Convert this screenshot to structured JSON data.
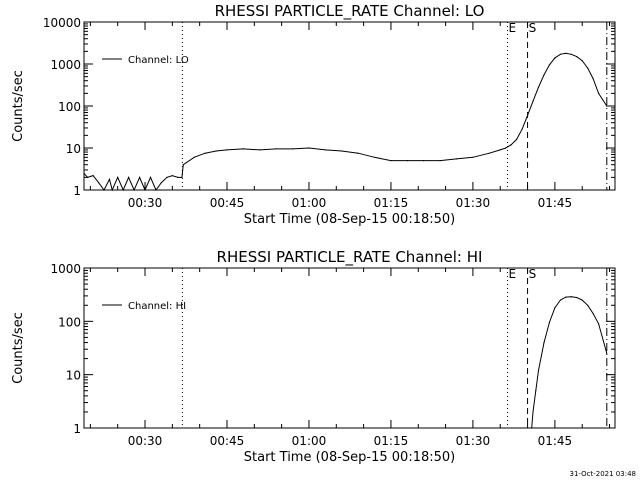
{
  "footer": {
    "timestamp": "31-Oct-2021 03:48"
  },
  "chart_data": [
    {
      "type": "line",
      "title": "RHESSI PARTICLE_RATE Channel: LO",
      "xlabel": "Start Time (08-Sep-15 00:18:50)",
      "ylabel": "Counts/sec",
      "y_scale": "log",
      "ylim": [
        1,
        10000
      ],
      "xlim": [
        "00:18:50",
        "01:56:00"
      ],
      "grid": false,
      "legend": {
        "position": "upper-left",
        "entries": [
          "Channel: LO"
        ]
      },
      "x_ticks": [
        "00:30",
        "00:45",
        "01:00",
        "01:15",
        "01:30",
        "01:45"
      ],
      "y_ticks": [
        "1",
        "10",
        "100",
        "1000",
        "10000"
      ],
      "markers": [
        {
          "label": "",
          "x": "00:36:50",
          "style": "dotted"
        },
        {
          "label": "E",
          "x": "01:36:20",
          "style": "dotted"
        },
        {
          "label": "S",
          "x": "01:40:00",
          "style": "dashed"
        },
        {
          "label": "",
          "x": "01:54:30",
          "style": "dash-dot"
        }
      ],
      "series": [
        {
          "name": "Channel: LO",
          "x": [
            "00:18:50",
            "00:19:30",
            "00:20:30",
            "00:21:30",
            "00:22:30",
            "00:23:30",
            "00:24:00",
            "00:25:00",
            "00:26:00",
            "00:27:00",
            "00:28:00",
            "00:29:00",
            "00:30:00",
            "00:31:00",
            "00:32:00",
            "00:33:00",
            "00:34:00",
            "00:35:00",
            "00:36:00",
            "00:36:45",
            "00:37:00",
            "00:39:00",
            "00:41:00",
            "00:43:00",
            "00:45:00",
            "00:48:00",
            "00:51:00",
            "00:54:00",
            "00:57:00",
            "01:00:00",
            "01:03:00",
            "01:06:00",
            "01:09:00",
            "01:12:00",
            "01:15:00",
            "01:18:00",
            "01:21:00",
            "01:24:00",
            "01:27:00",
            "01:30:00",
            "01:33:00",
            "01:35:00",
            "01:36:00",
            "01:37:00",
            "01:38:00",
            "01:39:00",
            "01:40:00",
            "01:41:00",
            "01:42:00",
            "01:43:00",
            "01:44:00",
            "01:45:00",
            "01:46:00",
            "01:47:00",
            "01:48:00",
            "01:49:00",
            "01:50:00",
            "01:51:00",
            "01:52:00",
            "01:53:00",
            "01:54:30"
          ],
          "values": [
            2.5,
            2,
            2.2,
            1.5,
            1,
            1.8,
            1,
            2,
            1,
            2,
            1,
            2,
            1,
            2,
            1,
            1.5,
            2,
            2.2,
            2,
            2,
            4,
            6,
            7.5,
            8.5,
            9,
            9.5,
            9,
            9.5,
            9.5,
            10,
            9,
            8.5,
            7.5,
            6,
            5,
            5,
            5,
            5,
            5.5,
            6,
            7.5,
            9,
            10,
            12,
            16,
            28,
            60,
            130,
            280,
            550,
            950,
            1400,
            1700,
            1800,
            1700,
            1500,
            1200,
            800,
            450,
            200,
            100
          ]
        }
      ]
    },
    {
      "type": "line",
      "title": "RHESSI PARTICLE_RATE Channel: HI",
      "xlabel": "Start Time (08-Sep-15 00:18:50)",
      "ylabel": "Counts/sec",
      "y_scale": "log",
      "ylim": [
        1,
        1000
      ],
      "xlim": [
        "00:18:50",
        "01:56:00"
      ],
      "grid": false,
      "legend": {
        "position": "upper-left",
        "entries": [
          "Channel: HI"
        ]
      },
      "x_ticks": [
        "00:30",
        "00:45",
        "01:00",
        "01:15",
        "01:30",
        "01:45"
      ],
      "y_ticks": [
        "1",
        "10",
        "100",
        "1000"
      ],
      "markers": [
        {
          "label": "",
          "x": "00:36:50",
          "style": "dotted"
        },
        {
          "label": "E",
          "x": "01:36:20",
          "style": "dotted"
        },
        {
          "label": "S",
          "x": "01:40:00",
          "style": "dashed"
        },
        {
          "label": "",
          "x": "01:54:30",
          "style": "dash-dot"
        }
      ],
      "series": [
        {
          "name": "Channel: HI",
          "x": [
            "01:40:45",
            "01:41:00",
            "01:41:30",
            "01:42:00",
            "01:43:00",
            "01:44:00",
            "01:45:00",
            "01:46:00",
            "01:47:00",
            "01:48:00",
            "01:49:00",
            "01:50:00",
            "01:51:00",
            "01:52:00",
            "01:53:00",
            "01:54:30"
          ],
          "values": [
            1,
            2,
            5,
            12,
            40,
            95,
            180,
            250,
            285,
            290,
            280,
            250,
            200,
            140,
            90,
            25
          ]
        }
      ]
    }
  ]
}
